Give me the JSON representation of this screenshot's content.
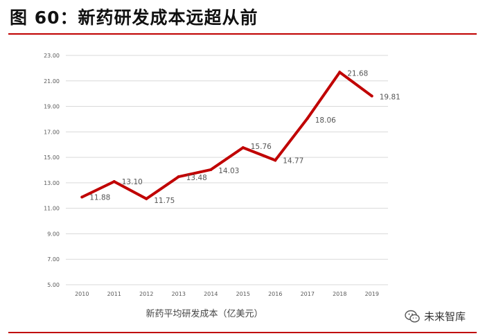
{
  "header": {
    "title": "图 60：新药研发成本远超从前"
  },
  "chart_data": {
    "type": "line",
    "title": "",
    "xlabel": "新药平均研发成本（亿美元）",
    "ylabel": "",
    "categories": [
      "2010",
      "2011",
      "2012",
      "2013",
      "2014",
      "2015",
      "2016",
      "2017",
      "2018",
      "2019"
    ],
    "series": [
      {
        "values": [
          11.88,
          13.1,
          11.75,
          13.48,
          14.03,
          15.76,
          14.77,
          18.06,
          21.68,
          19.81
        ]
      }
    ],
    "data_labels": [
      "11.88",
      "13.10",
      "11.75",
      "13.48",
      "14.03",
      "15.76",
      "14.77",
      "18.06",
      "21.68",
      "19.81"
    ],
    "yticks": [
      "5.00",
      "7.00",
      "9.00",
      "11.00",
      "13.00",
      "15.00",
      "17.00",
      "19.00",
      "21.00",
      "23.00"
    ],
    "ylim": [
      5,
      23
    ],
    "grid": true,
    "legend": "none",
    "line_color": "#c00000"
  },
  "watermark": {
    "text": "未来智库",
    "icon": "wechat-icon"
  }
}
